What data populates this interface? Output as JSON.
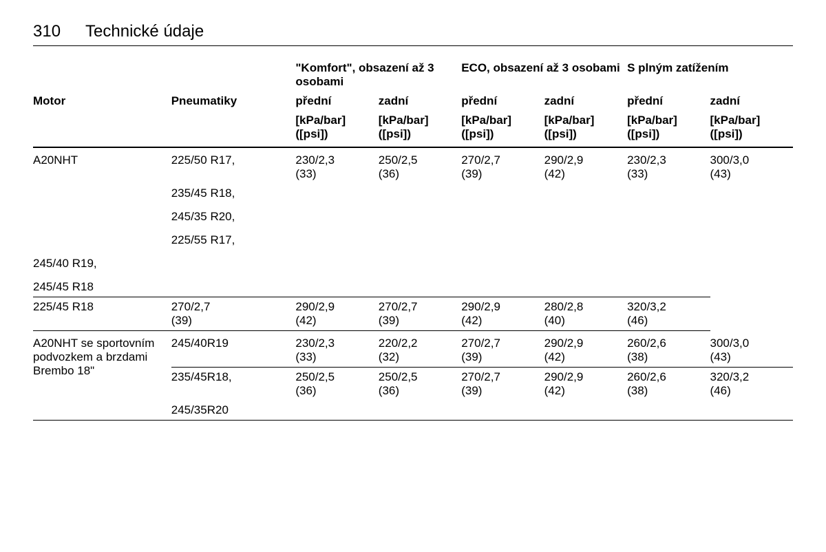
{
  "page": {
    "number": "310",
    "title": "Technické údaje"
  },
  "table": {
    "column_headers": {
      "motor": "Motor",
      "tyre": "Pneumatiky",
      "groups": [
        "\"Komfort\", obsazení až 3 osobami",
        "ECO, obsazení až 3 osobami",
        "S plným zatížením"
      ],
      "sub": {
        "front": "přední",
        "rear": "zadní"
      },
      "unit": "[kPa/bar] ([psi])"
    },
    "rows": [
      {
        "motor": "A20NHT",
        "tyres": [
          {
            "label": "225/50 R17,",
            "values": [
              "230/2,3 (33)",
              "250/2,5 (36)",
              "270/2,7 (39)",
              "290/2,9 (42)",
              "230/2,3 (33)",
              "300/3,0 (43)"
            ]
          },
          {
            "label": "235/45 R18,"
          },
          {
            "label": "245/35 R20,"
          },
          {
            "label": "225/55 R17,"
          },
          {
            "label": "245/40 R19,"
          },
          {
            "label": "245/45 R18",
            "border": "thin"
          },
          {
            "label": "225/45 R18",
            "values": [
              "270/2,7 (39)",
              "290/2,9 (42)",
              "270/2,7 (39)",
              "290/2,9 (42)",
              "280/2,8 (40)",
              "320/3,2 (46)"
            ],
            "border": "thin"
          }
        ]
      },
      {
        "motor": "A20NHT se sportovním podvozkem a brzdami Brembo 18\"",
        "tyres": [
          {
            "label": "245/40R19",
            "values": [
              "230/2,3 (33)",
              "220/2,2 (32)",
              "270/2,7 (39)",
              "290/2,9 (42)",
              "260/2,6 (38)",
              "300/3,0 (43)"
            ],
            "border": "thin"
          },
          {
            "label": "235/45R18,",
            "values": [
              "250/2,5 (36)",
              "250/2,5 (36)",
              "270/2,7 (39)",
              "290/2,9 (42)",
              "260/2,6 (38)",
              "320/3,2 (46)"
            ]
          },
          {
            "label": "245/35R20",
            "border": "thin"
          }
        ]
      }
    ]
  },
  "style": {
    "font_family": "Arial, Helvetica, sans-serif",
    "text_color": "#000000",
    "background_color": "#ffffff",
    "page_number_fontsize": 24,
    "title_fontsize": 24,
    "body_fontsize": 17,
    "border_color": "#000000"
  }
}
